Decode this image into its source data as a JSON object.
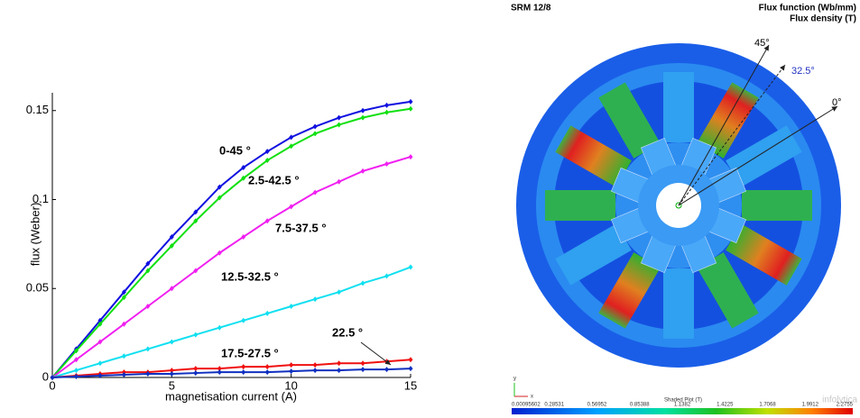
{
  "chart_data": {
    "type": "line",
    "x_label": "magnetisation current (A)",
    "y_label": "flux (Weber)",
    "x": [
      0,
      1,
      2,
      3,
      4,
      5,
      6,
      7,
      8,
      9,
      10,
      11,
      12,
      13,
      14,
      15
    ],
    "xlim": [
      0,
      15
    ],
    "xticks": [
      0,
      5,
      10,
      15
    ],
    "ylim": [
      0,
      0.16
    ],
    "yticks": [
      0,
      0.05,
      0.1,
      0.15
    ],
    "series": [
      {
        "name": "0-45 °",
        "color": "#1010e0",
        "values": [
          0,
          0.016,
          0.032,
          0.048,
          0.064,
          0.079,
          0.093,
          0.107,
          0.118,
          0.127,
          0.135,
          0.141,
          0.146,
          0.15,
          0.153,
          0.155
        ]
      },
      {
        "name": "2.5-42.5 °",
        "color": "#10e010",
        "values": [
          0,
          0.015,
          0.03,
          0.045,
          0.06,
          0.074,
          0.088,
          0.101,
          0.112,
          0.122,
          0.13,
          0.137,
          0.142,
          0.146,
          0.149,
          0.151
        ]
      },
      {
        "name": "7.5-37.5 °",
        "color": "#f020f0",
        "values": [
          0,
          0.01,
          0.02,
          0.03,
          0.04,
          0.05,
          0.06,
          0.07,
          0.079,
          0.088,
          0.096,
          0.104,
          0.11,
          0.116,
          0.12,
          0.124
        ]
      },
      {
        "name": "12.5-32.5 °",
        "color": "#10e0f0",
        "values": [
          0,
          0.004,
          0.008,
          0.012,
          0.016,
          0.02,
          0.024,
          0.028,
          0.032,
          0.036,
          0.04,
          0.044,
          0.048,
          0.053,
          0.057,
          0.062
        ]
      },
      {
        "name": "17.5-27.5 °",
        "color": "#f01010",
        "values": [
          0,
          0.001,
          0.002,
          0.003,
          0.003,
          0.004,
          0.005,
          0.005,
          0.006,
          0.006,
          0.007,
          0.007,
          0.008,
          0.008,
          0.009,
          0.01
        ]
      },
      {
        "name": "22.5 °",
        "color": "#1030c0",
        "values": [
          0,
          0.0005,
          0.001,
          0.0015,
          0.002,
          0.002,
          0.0025,
          0.003,
          0.003,
          0.003,
          0.0035,
          0.004,
          0.004,
          0.0045,
          0.0045,
          0.005
        ]
      }
    ]
  },
  "figure": {
    "title": "SRM 12/8",
    "legend_lines": [
      "Flux function (Wb/mm)",
      "Flux density (T)"
    ],
    "angles": [
      "45°",
      "32.5°",
      "0°"
    ],
    "axes": [
      "x",
      "y"
    ],
    "logo": "infolytica",
    "colorbar": {
      "title": "Shaded Plot (T)",
      "labels": [
        "0.00095602",
        "0.28531",
        "0.56952",
        "0.85388",
        "1.1382",
        "1.4225",
        "1.7068",
        "1.9912",
        "2.2755"
      ]
    }
  }
}
